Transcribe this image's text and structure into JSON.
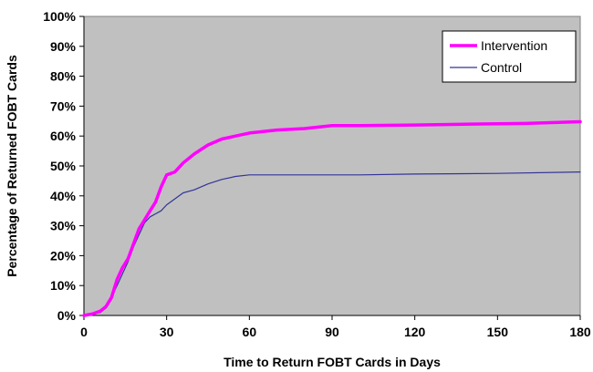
{
  "chart_data": {
    "type": "line",
    "xlabel": "Time to Return FOBT Cards in Days",
    "ylabel": "Percentage of Returned FOBT Cards",
    "xlim": [
      0,
      180
    ],
    "ylim": [
      0,
      100
    ],
    "x_ticks": [
      "0",
      "30",
      "60",
      "90",
      "120",
      "150",
      "180"
    ],
    "y_ticks": [
      "0%",
      "10%",
      "20%",
      "30%",
      "40%",
      "50%",
      "60%",
      "70%",
      "80%",
      "90%",
      "100%"
    ],
    "grid": false,
    "legend_position": "top-right",
    "plot_background": "#c0c0c0",
    "series": [
      {
        "name": "Intervention",
        "color": "#ff00ff",
        "points": [
          [
            0,
            0
          ],
          [
            3,
            0.5
          ],
          [
            6,
            1.5
          ],
          [
            8,
            3
          ],
          [
            10,
            6
          ],
          [
            12,
            12
          ],
          [
            14,
            16
          ],
          [
            16,
            19
          ],
          [
            18,
            24
          ],
          [
            20,
            29
          ],
          [
            22,
            32
          ],
          [
            24,
            35
          ],
          [
            26,
            38
          ],
          [
            28,
            43
          ],
          [
            30,
            47
          ],
          [
            33,
            48
          ],
          [
            36,
            51
          ],
          [
            40,
            54
          ],
          [
            45,
            57
          ],
          [
            50,
            59
          ],
          [
            55,
            60
          ],
          [
            60,
            61
          ],
          [
            70,
            62
          ],
          [
            80,
            62.5
          ],
          [
            90,
            63.5
          ],
          [
            100,
            63.5
          ],
          [
            120,
            63.7
          ],
          [
            140,
            64
          ],
          [
            160,
            64.2
          ],
          [
            180,
            64.8
          ]
        ]
      },
      {
        "name": "Control",
        "color": "#333399",
        "points": [
          [
            0,
            0
          ],
          [
            3,
            0.5
          ],
          [
            6,
            1
          ],
          [
            8,
            2.5
          ],
          [
            10,
            6
          ],
          [
            12,
            10
          ],
          [
            14,
            14
          ],
          [
            16,
            18
          ],
          [
            18,
            23
          ],
          [
            20,
            27
          ],
          [
            22,
            31
          ],
          [
            24,
            33
          ],
          [
            26,
            34
          ],
          [
            28,
            35
          ],
          [
            30,
            37
          ],
          [
            33,
            39
          ],
          [
            36,
            41
          ],
          [
            40,
            42
          ],
          [
            45,
            44
          ],
          [
            50,
            45.5
          ],
          [
            55,
            46.5
          ],
          [
            60,
            47
          ],
          [
            80,
            47
          ],
          [
            100,
            47
          ],
          [
            120,
            47.3
          ],
          [
            150,
            47.5
          ],
          [
            180,
            48
          ]
        ]
      }
    ]
  }
}
